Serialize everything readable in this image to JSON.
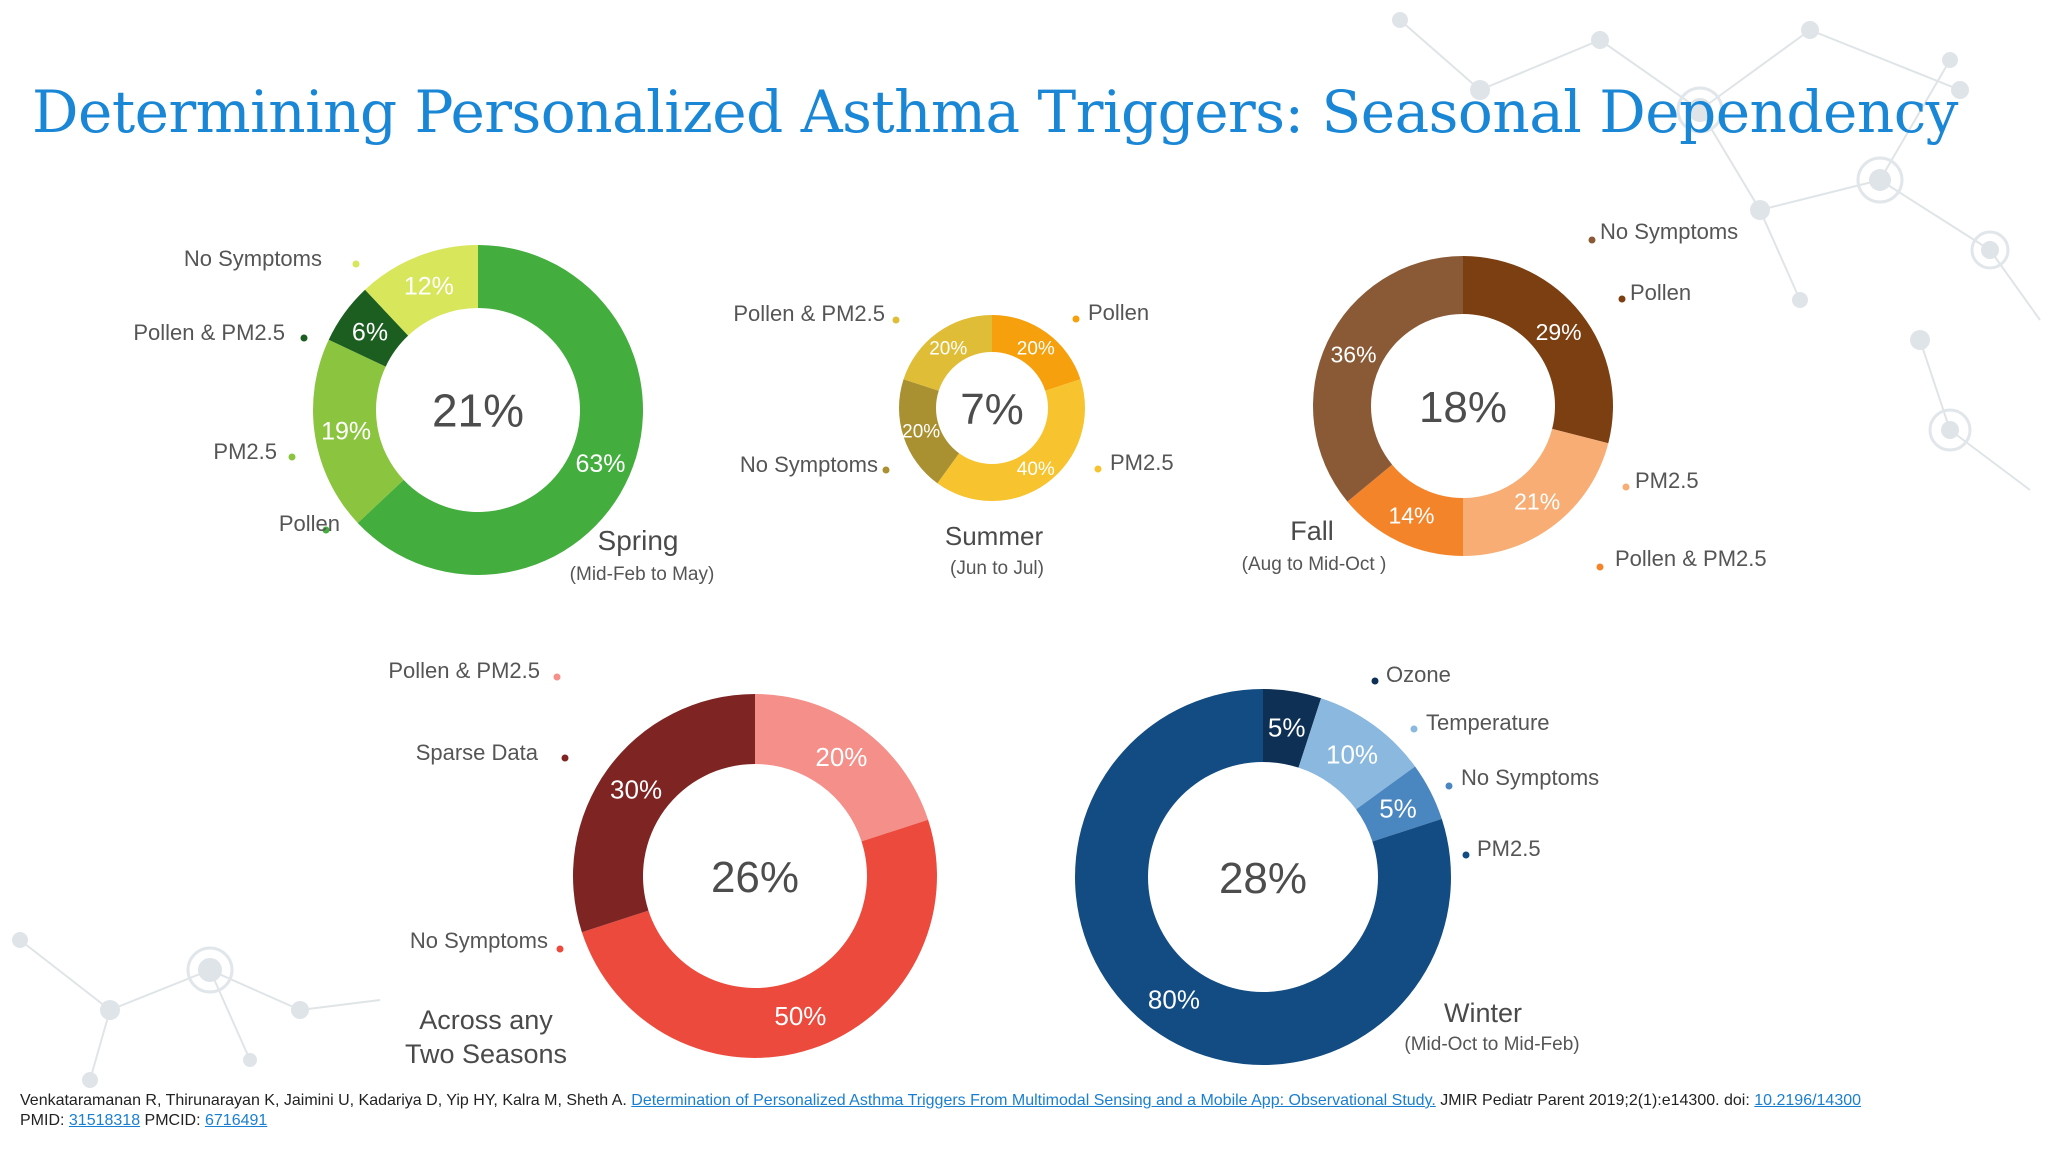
{
  "title": "Determining Personalized Asthma Triggers: Seasonal Dependency",
  "colors": {
    "title": "#1a86d6",
    "link": "#1a7fd0"
  },
  "chart_data": [
    {
      "type": "donut",
      "center": "21%",
      "season": "Spring",
      "range": "(Mid-Feb to May)",
      "slices": [
        {
          "label": "Pollen",
          "value": 63,
          "text": "63%",
          "color": "#43ad3e"
        },
        {
          "label": "PM2.5",
          "value": 19,
          "text": "19%",
          "color": "#8bc53f"
        },
        {
          "label": "Pollen & PM2.5",
          "value": 6,
          "text": "6%",
          "color": "#1b5e20"
        },
        {
          "label": "No Symptoms",
          "value": 12,
          "text": "12%",
          "color": "#d7e65a"
        }
      ]
    },
    {
      "type": "donut",
      "center": "7%",
      "season": "Summer",
      "range": "(Jun to Jul)",
      "slices": [
        {
          "label": "Pollen",
          "value": 20,
          "text": "20%",
          "color": "#f5a00c"
        },
        {
          "label": "PM2.5",
          "value": 40,
          "text": "40%",
          "color": "#f7c32e"
        },
        {
          "label": "No Symptoms",
          "value": 20,
          "text": "20%",
          "color": "#a99030"
        },
        {
          "label": "Pollen & PM2.5",
          "value": 20,
          "text": "20%",
          "color": "#e0bd36"
        }
      ]
    },
    {
      "type": "donut",
      "center": "18%",
      "season": "Fall",
      "range": "(Aug to Mid-Oct )",
      "slices": [
        {
          "label": "Pollen",
          "value": 29,
          "text": "29%",
          "color": "#7b3f12"
        },
        {
          "label": "PM2.5",
          "value": 21,
          "text": "21%",
          "color": "#f7ad74"
        },
        {
          "label": "Pollen & PM2.5",
          "value": 14,
          "text": "14%",
          "color": "#f4842a"
        },
        {
          "label": "No Symptoms",
          "value": 36,
          "text": "36%",
          "color": "#8a5a36"
        }
      ]
    },
    {
      "type": "donut",
      "center": "26%",
      "season": "Across any Two Seasons",
      "season_lines": [
        "Across any",
        "Two Seasons"
      ],
      "range": "",
      "slices": [
        {
          "label": "Pollen & PM2.5",
          "value": 20,
          "text": "20%",
          "color": "#f48f8a"
        },
        {
          "label": "No Symptoms",
          "value": 50,
          "text": "50%",
          "color": "#ec4a3c"
        },
        {
          "label": "Sparse Data",
          "value": 30,
          "text": "30%",
          "color": "#7e2423"
        }
      ]
    },
    {
      "type": "donut",
      "center": "28%",
      "season": "Winter",
      "range": "(Mid-Oct to Mid-Feb)",
      "slices": [
        {
          "label": "Ozone",
          "value": 5,
          "text": "5%",
          "color": "#0e3055"
        },
        {
          "label": "Temperature",
          "value": 10,
          "text": "10%",
          "color": "#8ab8de"
        },
        {
          "label": "No Symptoms",
          "value": 5,
          "text": "5%",
          "color": "#4a86c0"
        },
        {
          "label": "PM2.5",
          "value": 80,
          "text": "80%",
          "color": "#124c82"
        }
      ]
    }
  ],
  "citation": {
    "authors": "Venkataramanan R, Thirunarayan K, Jaimini U, Kadariya D, Yip HY, Kalra M, Sheth A.",
    "article": "Determination of Personalized Asthma Triggers From Multimodal Sensing and a Mobile App: Observational Study.",
    "journal": "JMIR Pediatr Parent 2019;2(1):e14300. doi:",
    "doi": "10.2196/14300",
    "pmid_label": "PMID:",
    "pmid": "31518318",
    "pmcid_label": "PMCID:",
    "pmcid": "6716491"
  }
}
